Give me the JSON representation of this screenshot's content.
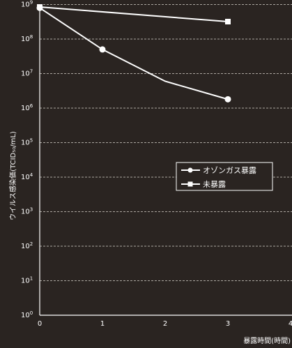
{
  "chart_data": {
    "type": "line",
    "yscale": "log",
    "xlim": [
      0,
      4
    ],
    "ylim": [
      1,
      1000000000
    ],
    "x_ticks": [
      "0",
      "1",
      "2",
      "3",
      "4"
    ],
    "y_ticks": [
      {
        "base": "10",
        "exp": "0"
      },
      {
        "base": "10",
        "exp": "1"
      },
      {
        "base": "10",
        "exp": "2"
      },
      {
        "base": "10",
        "exp": "3"
      },
      {
        "base": "10",
        "exp": "4"
      },
      {
        "base": "10",
        "exp": "5"
      },
      {
        "base": "10",
        "exp": "6"
      },
      {
        "base": "10",
        "exp": "7"
      },
      {
        "base": "10",
        "exp": "8"
      },
      {
        "base": "10",
        "exp": "9"
      }
    ],
    "xlabel": "暴露時間(時間)",
    "ylabel": "ウイルス感染価(TCID₅₀/mL)",
    "grid": "horizontal-dashed",
    "legend_position": "center-right",
    "series": [
      {
        "name": "オゾンガス暴露",
        "marker": "circle",
        "points": [
          {
            "x": 0,
            "y": 800000000
          },
          {
            "x": 1,
            "y": 50000000
          },
          {
            "x": 2,
            "y": 6000000
          },
          {
            "x": 3,
            "y": 1800000
          }
        ]
      },
      {
        "name": "未暴露",
        "marker": "square",
        "points": [
          {
            "x": 0,
            "y": 850000000
          },
          {
            "x": 3,
            "y": 320000000
          }
        ]
      }
    ],
    "colors": {
      "background": "#2a2421",
      "foreground": "#ffffff",
      "grid": "#d8d2cc"
    }
  }
}
